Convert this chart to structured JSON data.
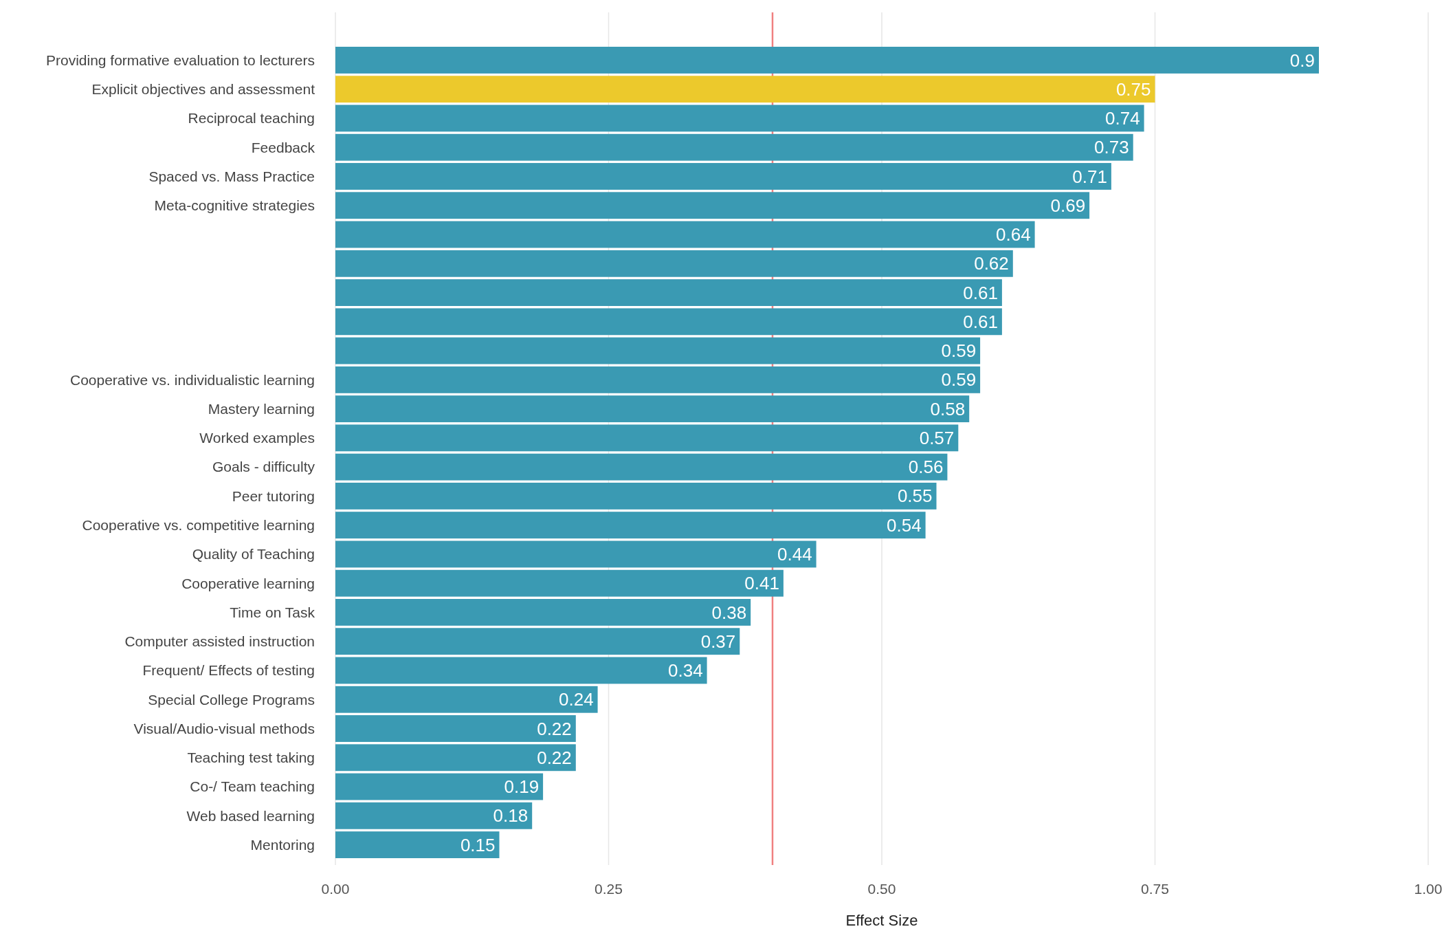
{
  "chart_data": {
    "type": "bar",
    "orientation": "horizontal",
    "xlabel": "Effect Size",
    "categories": [
      "Providing formative evaluation to lecturers",
      "Explicit objectives and assessment",
      "Reciprocal teaching",
      "Feedback",
      "Spaced vs. Mass Practice",
      "Meta-cognitive strategies",
      null,
      null,
      null,
      null,
      null,
      "Cooperative vs. individualistic learning",
      "Mastery learning",
      "Worked examples",
      "Goals - difficulty",
      "Peer tutoring",
      "Cooperative vs. competitive learning",
      "Quality of Teaching",
      "Cooperative learning",
      "Time on Task",
      "Computer assisted instruction",
      "Frequent/ Effects of testing",
      "Special College Programs",
      "Visual/Audio-visual methods",
      "Teaching test taking",
      "Co-/ Team teaching",
      "Web based learning",
      "Mentoring"
    ],
    "values": [
      0.9,
      0.75,
      0.74,
      0.73,
      0.71,
      0.69,
      0.64,
      0.62,
      0.61,
      0.61,
      0.59,
      0.59,
      0.58,
      0.57,
      0.56,
      0.55,
      0.54,
      0.44,
      0.41,
      0.38,
      0.37,
      0.34,
      0.24,
      0.22,
      0.22,
      0.19,
      0.18,
      0.15
    ],
    "colors": [
      "#3a9ab3",
      "#ecc92c",
      "#3a9ab3",
      "#3a9ab3",
      "#3a9ab3",
      "#3a9ab3",
      "#3a9ab3",
      "#3a9ab3",
      "#3a9ab3",
      "#3a9ab3",
      "#3a9ab3",
      "#3a9ab3",
      "#3a9ab3",
      "#3a9ab3",
      "#3a9ab3",
      "#3a9ab3",
      "#3a9ab3",
      "#3a9ab3",
      "#3a9ab3",
      "#3a9ab3",
      "#3a9ab3",
      "#3a9ab3",
      "#3a9ab3",
      "#3a9ab3",
      "#3a9ab3",
      "#3a9ab3",
      "#3a9ab3",
      "#3a9ab3"
    ],
    "xlim": [
      0,
      1
    ],
    "xticks": [
      {
        "value": 0,
        "label": "0.00"
      },
      {
        "value": 0.25,
        "label": "0.25"
      },
      {
        "value": 0.5,
        "label": "0.50"
      },
      {
        "value": 0.75,
        "label": "0.75"
      },
      {
        "value": 1,
        "label": "1.00"
      }
    ],
    "grid": "x",
    "data_labels": true,
    "ref_lines": [
      {
        "axis": "x",
        "value": 0.4,
        "color": "#f08080"
      }
    ]
  }
}
